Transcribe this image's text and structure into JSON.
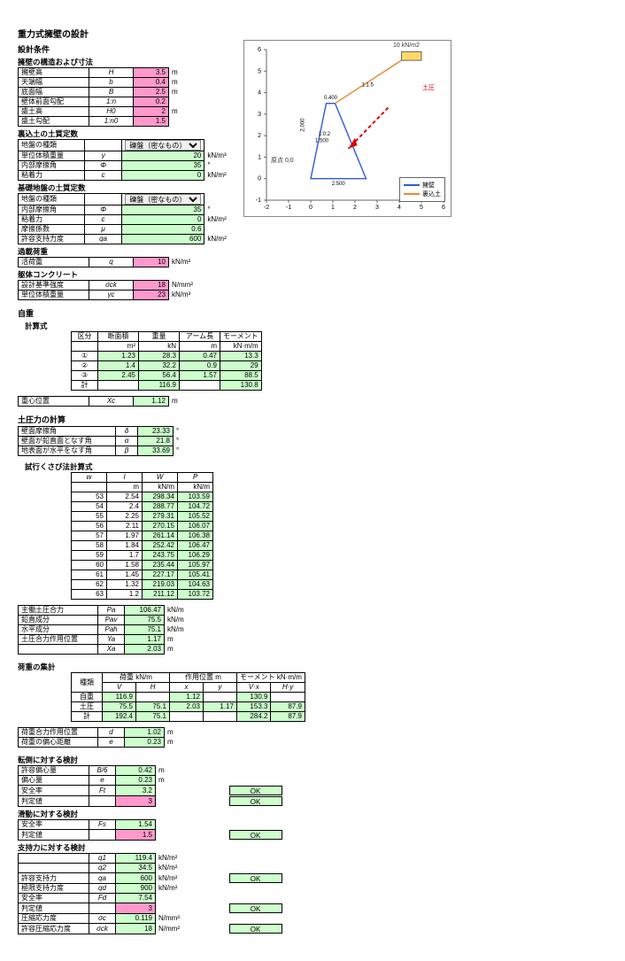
{
  "title": "重力式擁壁の設計",
  "cond": {
    "h1": "設計条件",
    "h2": "擁壁の構造および寸法",
    "rows1": [
      {
        "n": "擁壁高",
        "s": "H",
        "v": "3.5",
        "cls": "val-pink",
        "u": "m"
      },
      {
        "n": "天端幅",
        "s": "b",
        "v": "0.4",
        "cls": "val-pink",
        "u": "m"
      },
      {
        "n": "底面幅",
        "s": "B",
        "v": "2.5",
        "cls": "val-pink",
        "u": "m"
      },
      {
        "n": "壁体前面勾配",
        "s": "1:n",
        "v": "0.2",
        "cls": "val-pink",
        "u": ""
      },
      {
        "n": "盛土高",
        "s": "H0",
        "v": "2",
        "cls": "val-pink",
        "u": "m"
      },
      {
        "n": "盛土勾配",
        "s": "1:n0",
        "v": "1.5",
        "cls": "val-pink",
        "u": ""
      }
    ],
    "h3": "裏込土の土質定数",
    "rows2": [
      {
        "n": "地盤の種類",
        "s": "",
        "select": "礫盤（密なもの）"
      },
      {
        "n": "単位体積重量",
        "s": "γ",
        "v": "20",
        "cls": "val-green",
        "u": "kN/m³"
      },
      {
        "n": "内部摩擦角",
        "s": "Φ",
        "v": "35",
        "cls": "val-green",
        "u": "°"
      },
      {
        "n": "粘着力",
        "s": "c",
        "v": "0",
        "cls": "val-green",
        "u": "kN/m²"
      }
    ],
    "h4": "基礎地盤の土質定数",
    "rows3": [
      {
        "n": "地盤の種類",
        "s": "",
        "select": "礫盤（密なもの）"
      },
      {
        "n": "内部摩擦角",
        "s": "Φ",
        "v": "35",
        "cls": "val-green",
        "u": "°"
      },
      {
        "n": "粘着力",
        "s": "c",
        "v": "0",
        "cls": "val-green",
        "u": "kN/m²"
      },
      {
        "n": "摩擦係数",
        "s": "μ",
        "v": "0.6",
        "cls": "val-green",
        "u": ""
      },
      {
        "n": "許容支持力度",
        "s": "qa",
        "v": "600",
        "cls": "val-green",
        "u": "kN/m²"
      }
    ],
    "h5": "過載荷重",
    "rows4": [
      {
        "n": "活荷重",
        "s": "q",
        "v": "10",
        "cls": "val-pink",
        "u": "kN/m²"
      }
    ],
    "h6": "躯体コンクリート",
    "rows5": [
      {
        "n": "設計基準強度",
        "s": "σck",
        "v": "18",
        "cls": "val-pink",
        "u": "N/mm²"
      },
      {
        "n": "単位体積重量",
        "s": "γc",
        "v": "23",
        "cls": "val-pink",
        "u": "kN/m³"
      }
    ]
  },
  "chart": {
    "xmin": -2,
    "xmax": 6,
    "ymin": -1,
    "ymax": 6,
    "xticks": [
      -2,
      -1,
      0,
      1,
      2,
      3,
      4,
      5,
      6
    ],
    "yticks": [
      -1,
      0,
      1,
      2,
      3,
      4,
      5,
      6
    ],
    "load_label": "10  kN/m2",
    "legend": [
      {
        "name": "擁壁",
        "color": "#2e5bd9"
      },
      {
        "name": "裏込土",
        "color": "#e68a2e"
      }
    ],
    "wall_color": "#2e5bd9",
    "fill_color": "#e68a2e",
    "arrow_color": "#d90000",
    "origin_label": "原点 0,0",
    "dims": [
      "2.500",
      "2.000",
      "1.500",
      "0.400",
      "1:0.2",
      "1:1.5"
    ],
    "tp_label": "土圧"
  },
  "mass": {
    "h": "自重",
    "h2": "計算式",
    "head": [
      "区分",
      "断面積",
      "重量",
      "アーム長",
      "モーメント"
    ],
    "units": [
      "",
      "m²",
      "kN",
      "m",
      "kN·m/m"
    ],
    "rows": [
      [
        "①",
        "1.23",
        "28.3",
        "0.47",
        "13.3"
      ],
      [
        "②",
        "1.4",
        "32.2",
        "0.9",
        "29"
      ],
      [
        "③",
        "2.45",
        "56.4",
        "1.57",
        "88.5"
      ],
      [
        "計",
        "",
        "116.9",
        "",
        "130.8"
      ]
    ],
    "cg": {
      "n": "重心位置",
      "s": "Xc",
      "v": "1.12",
      "u": "m"
    }
  },
  "ep": {
    "h": "土圧力の計算",
    "rows": [
      [
        "壁面摩擦角",
        "δ",
        "23.33",
        "°",
        "val-green"
      ],
      [
        "壁面が鉛直面となす角",
        "α",
        "21.8",
        "°",
        "val-green"
      ],
      [
        "地表面が水平をなす角",
        "β",
        "33.69",
        "°",
        "val-green"
      ]
    ],
    "wedge": {
      "h": "試行くさび法計算式",
      "head": [
        "w",
        "l",
        "W",
        "P"
      ],
      "u": [
        "",
        "m",
        "kN/m",
        "kN/m"
      ],
      "rows": [
        [
          "53",
          "2.54",
          "298.34",
          "103.59"
        ],
        [
          "54",
          "2.4",
          "288.77",
          "104.72"
        ],
        [
          "55",
          "2.25",
          "279.31",
          "105.52"
        ],
        [
          "56",
          "2.11",
          "270.15",
          "106.07"
        ],
        [
          "57",
          "1.97",
          "261.14",
          "106.38"
        ],
        [
          "58",
          "1.84",
          "252.42",
          "106.47"
        ],
        [
          "59",
          "1.7",
          "243.75",
          "106.29"
        ],
        [
          "60",
          "1.58",
          "235.44",
          "105.97"
        ],
        [
          "61",
          "1.45",
          "227.17",
          "105.41"
        ],
        [
          "62",
          "1.32",
          "219.03",
          "104.63"
        ],
        [
          "63",
          "1.2",
          "211.12",
          "103.72"
        ]
      ]
    },
    "sum": [
      [
        "主働土圧合力",
        "Pa",
        "106.47",
        "kN/m"
      ],
      [
        "鉛直成分",
        "Pav",
        "75.5",
        "kN/m"
      ],
      [
        "水平成分",
        "Pah",
        "75.1",
        "kN/m"
      ],
      [
        "土圧合力作用位置",
        "Ya",
        "1.17",
        "m"
      ],
      [
        "",
        "Xa",
        "2.03",
        "m"
      ]
    ]
  },
  "loads": {
    "h": "荷重の集計",
    "head": [
      "種類",
      "荷重 kN/m",
      "",
      "作用位置 m",
      "",
      "モーメント kN·m/m",
      ""
    ],
    "sub": [
      "",
      "V",
      "H",
      "x",
      "y",
      "V·x",
      "H·y"
    ],
    "rows": [
      [
        "自重",
        "116.9",
        "",
        "1.12",
        "",
        "130.9",
        ""
      ],
      [
        "土圧",
        "75.5",
        "75.1",
        "2.03",
        "1.17",
        "153.3",
        "87.9"
      ],
      [
        "計",
        "192.4",
        "75.1",
        "",
        "",
        "284.2",
        "87.9"
      ]
    ],
    "tail": [
      [
        "荷重合力作用位置",
        "d",
        "1.02",
        "m"
      ],
      [
        "荷重の偏心距離",
        "e",
        "0.23",
        "m"
      ]
    ]
  },
  "checks": {
    "over": {
      "h": "転倒に対する検討",
      "rows": [
        [
          "許容偏心量",
          "B/6",
          "0.42",
          "m",
          "",
          "val-green"
        ],
        [
          "偏心量",
          "e",
          "0.23",
          "m",
          "",
          "val-green"
        ],
        [
          "安全率",
          "Ft",
          "3.2",
          "",
          "OK",
          "val-green"
        ],
        [
          "判定値",
          "",
          "3",
          "",
          "OK",
          "val-pink"
        ]
      ]
    },
    "slide": {
      "h": "滑動に対する検討",
      "rows": [
        [
          "安全率",
          "Fs",
          "1.54",
          "",
          "",
          "val-green"
        ],
        [
          "判定値",
          "",
          "1.5",
          "",
          "OK",
          "val-pink"
        ]
      ]
    },
    "bear": {
      "h": "支持力に対する検討",
      "rows": [
        [
          "",
          "q1",
          "119.4",
          "kN/m²",
          "",
          "val-green"
        ],
        [
          "",
          "q2",
          "34.5",
          "kN/m²",
          "",
          "val-green"
        ],
        [
          "許容支持力",
          "qa",
          "600",
          "kN/m²",
          "OK",
          "val-green"
        ],
        [
          "極限支持力度",
          "qd",
          "900",
          "kN/m²",
          "",
          "val-green"
        ],
        [
          "安全率",
          "Fd",
          "7.54",
          "",
          "",
          "val-green"
        ],
        [
          "判定値",
          "",
          "3",
          "",
          "OK",
          "val-pink"
        ],
        [
          "圧縮応力度",
          "σc",
          "0.119",
          "N/mm²",
          "",
          "val-green"
        ],
        [
          "許容圧縮応力度",
          "σck",
          "18",
          "N/mm²",
          "OK",
          "val-green"
        ]
      ]
    }
  }
}
